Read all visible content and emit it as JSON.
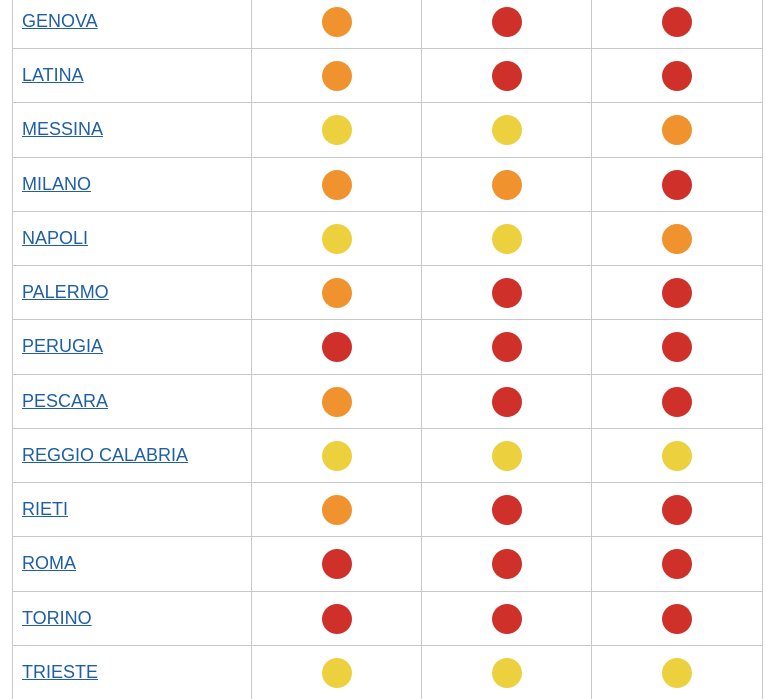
{
  "table": {
    "rows": [
      {
        "city": "GENOVA",
        "dots": [
          "#f0922e",
          "#d0302a",
          "#d0302a"
        ]
      },
      {
        "city": "LATINA",
        "dots": [
          "#f0922e",
          "#d0302a",
          "#d0302a"
        ]
      },
      {
        "city": "MESSINA",
        "dots": [
          "#ecd03e",
          "#ecd03e",
          "#f0922e"
        ]
      },
      {
        "city": "MILANO",
        "dots": [
          "#f0922e",
          "#f0922e",
          "#d0302a"
        ]
      },
      {
        "city": "NAPOLI",
        "dots": [
          "#ecd03e",
          "#ecd03e",
          "#f0922e"
        ]
      },
      {
        "city": "PALERMO",
        "dots": [
          "#f0922e",
          "#d0302a",
          "#d0302a"
        ]
      },
      {
        "city": "PERUGIA",
        "dots": [
          "#d0302a",
          "#d0302a",
          "#d0302a"
        ]
      },
      {
        "city": "PESCARA",
        "dots": [
          "#f0922e",
          "#d0302a",
          "#d0302a"
        ]
      },
      {
        "city": "REGGIO CALABRIA",
        "dots": [
          "#ecd03e",
          "#ecd03e",
          "#ecd03e"
        ]
      },
      {
        "city": "RIETI",
        "dots": [
          "#f0922e",
          "#d0302a",
          "#d0302a"
        ]
      },
      {
        "city": "ROMA",
        "dots": [
          "#d0302a",
          "#d0302a",
          "#d0302a"
        ]
      },
      {
        "city": "TORINO",
        "dots": [
          "#d0302a",
          "#d0302a",
          "#d0302a"
        ]
      },
      {
        "city": "TRIESTE",
        "dots": [
          "#ecd03e",
          "#ecd03e",
          "#ecd03e"
        ]
      }
    ]
  }
}
